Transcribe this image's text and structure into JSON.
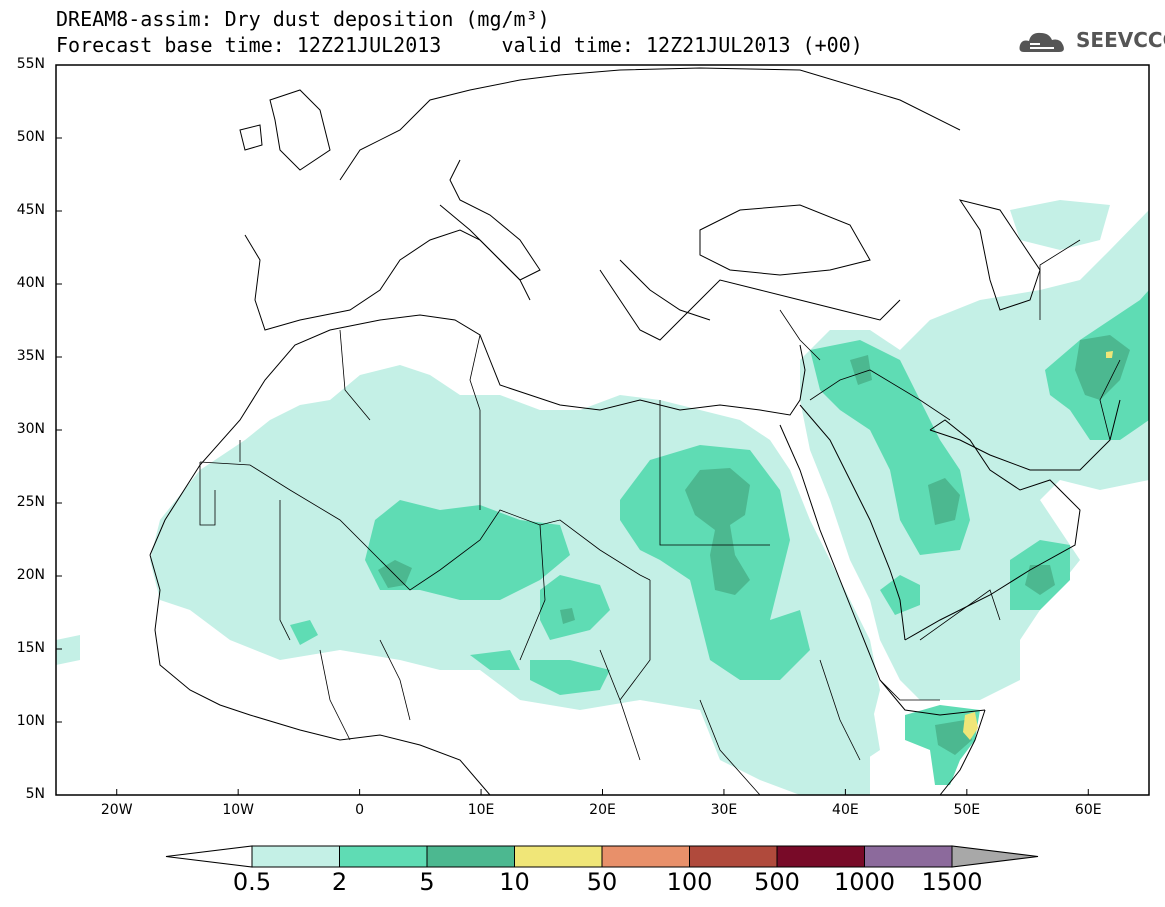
{
  "title": {
    "line1": "DREAM8-assim: Dry dust deposition (mg/m³)",
    "line2": "Forecast base time: 12Z21JUL2013     valid time: 12Z21JUL2013 (+00)"
  },
  "logo": {
    "text": "SEEVCCC",
    "icon": "cloud-icon"
  },
  "map": {
    "lat_labels": [
      "55N",
      "50N",
      "45N",
      "40N",
      "35N",
      "30N",
      "25N",
      "20N",
      "15N",
      "10N",
      "5N"
    ],
    "lon_labels": [
      "20W",
      "10W",
      "0",
      "10E",
      "20E",
      "30E",
      "40E",
      "50E",
      "60E"
    ],
    "lat_range": [
      5,
      55
    ],
    "lon_range": [
      -25,
      65
    ],
    "background": "#ffffff",
    "coastline_color": "#000000"
  },
  "colorbar": {
    "labels": [
      "0.5",
      "2",
      "5",
      "10",
      "50",
      "100",
      "500",
      "1000",
      "1500"
    ],
    "colors": [
      "#c4f0e6",
      "#5fdcb4",
      "#4cb890",
      "#f0e678",
      "#e8906a",
      "#b04a3c",
      "#780a28",
      "#8c6a9c",
      "#a8a8a8"
    ],
    "under_color": "#ffffff",
    "over_color": "#a8a8a8"
  }
}
